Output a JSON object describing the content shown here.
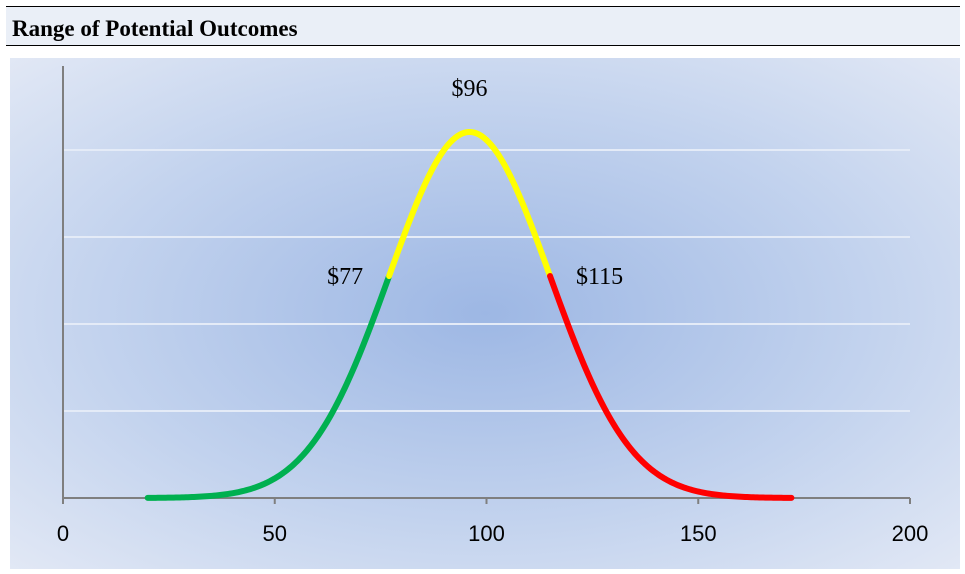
{
  "header": {
    "title": "Range of Potential Outcomes"
  },
  "chart_data": {
    "type": "line",
    "title": "",
    "xlabel": "",
    "ylabel": "",
    "xlim": [
      0,
      200
    ],
    "x_ticks": [
      "0",
      "50",
      "100",
      "150",
      "200"
    ],
    "grid": true,
    "legend": "none",
    "distribution": {
      "mean": 96,
      "sd": 19,
      "x_start": 20,
      "x_end": 172
    },
    "segments": [
      {
        "x_from": 20,
        "x_to": 77,
        "color": "#00b050"
      },
      {
        "x_from": 77,
        "x_to": 115,
        "color": "#ffff00"
      },
      {
        "x_from": 115,
        "x_to": 172,
        "color": "#ff0000"
      }
    ],
    "annotations": [
      {
        "text": "$77",
        "x": 77
      },
      {
        "text": "$96",
        "x": 96
      },
      {
        "text": "$115",
        "x": 115
      }
    ]
  }
}
